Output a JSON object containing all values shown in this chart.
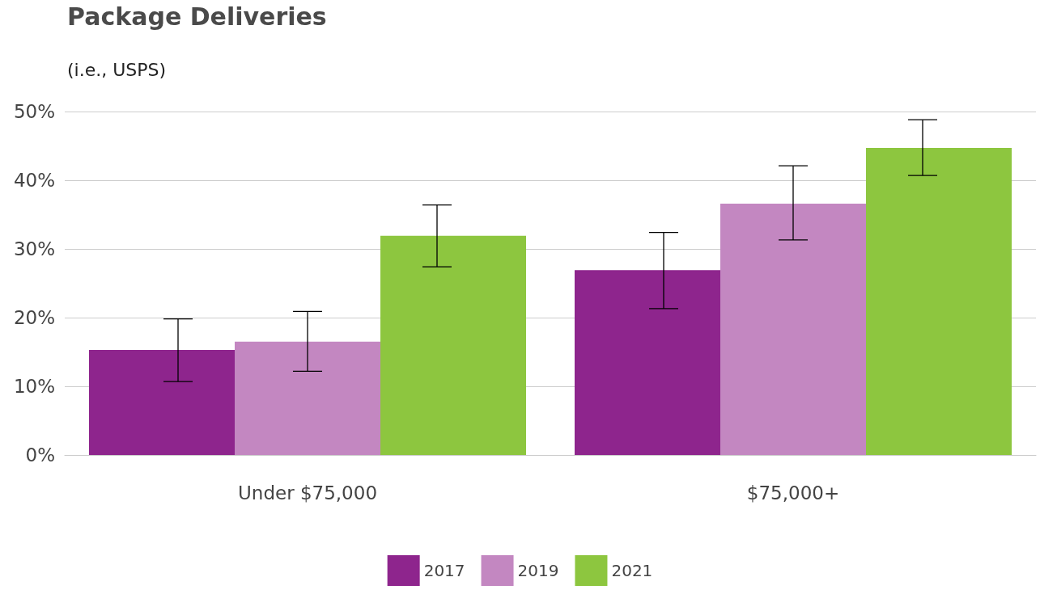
{
  "chart_data": {
    "type": "bar",
    "title": "Package Deliveries",
    "subtitle": "(i.e., USPS)",
    "categories": [
      "Under $75,000",
      "$75,000+"
    ],
    "series": [
      {
        "name": "2017",
        "color": "#8e258d",
        "values": [
          15.3,
          26.9
        ],
        "errors": [
          [
            10.7,
            19.8
          ],
          [
            21.3,
            32.4
          ]
        ]
      },
      {
        "name": "2019",
        "color": "#c387c1",
        "values": [
          16.5,
          36.6
        ],
        "errors": [
          [
            12.2,
            20.9
          ],
          [
            31.3,
            42.1
          ]
        ]
      },
      {
        "name": "2021",
        "color": "#8dc63f",
        "values": [
          31.9,
          44.7
        ],
        "errors": [
          [
            27.4,
            36.4
          ],
          [
            40.7,
            48.8
          ]
        ]
      }
    ],
    "ylim": [
      0,
      50
    ],
    "yticks": [
      {
        "value": 0,
        "label": "0%"
      },
      {
        "value": 10,
        "label": "10%"
      },
      {
        "value": 20,
        "label": "20%"
      },
      {
        "value": 30,
        "label": "30%"
      },
      {
        "value": 40,
        "label": "40%"
      },
      {
        "value": 50,
        "label": "50%"
      }
    ],
    "grid": "y",
    "legend": "bottom"
  }
}
